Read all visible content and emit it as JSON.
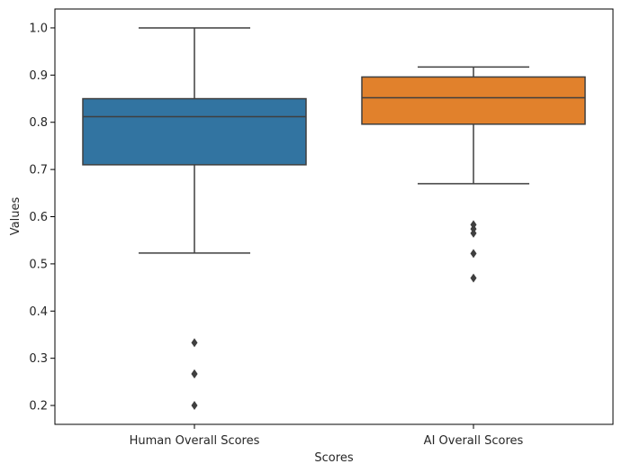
{
  "chart_data": {
    "type": "box",
    "title": "",
    "xlabel": "Scores",
    "ylabel": "Values",
    "ylim": [
      0.16,
      1.04
    ],
    "yticks": [
      0.2,
      0.3,
      0.4,
      0.5,
      0.6,
      0.7,
      0.8,
      0.9,
      1.0
    ],
    "ytick_labels": [
      "0.2",
      "0.3",
      "0.4",
      "0.5",
      "0.6",
      "0.7",
      "0.8",
      "0.9",
      "1.0"
    ],
    "grid": false,
    "series": [
      {
        "category": "Human Overall Scores",
        "color": "#3274a1",
        "whisker_low": 0.523,
        "q1": 0.71,
        "median": 0.812,
        "q3": 0.85,
        "whisker_high": 1.0,
        "outliers": [
          0.333,
          0.267,
          0.267,
          0.2
        ]
      },
      {
        "category": "AI Overall Scores",
        "color": "#e1812c",
        "whisker_low": 0.67,
        "q1": 0.796,
        "median": 0.852,
        "q3": 0.896,
        "whisker_high": 0.917,
        "outliers": [
          0.583,
          0.574,
          0.565,
          0.522,
          0.47
        ]
      }
    ]
  }
}
